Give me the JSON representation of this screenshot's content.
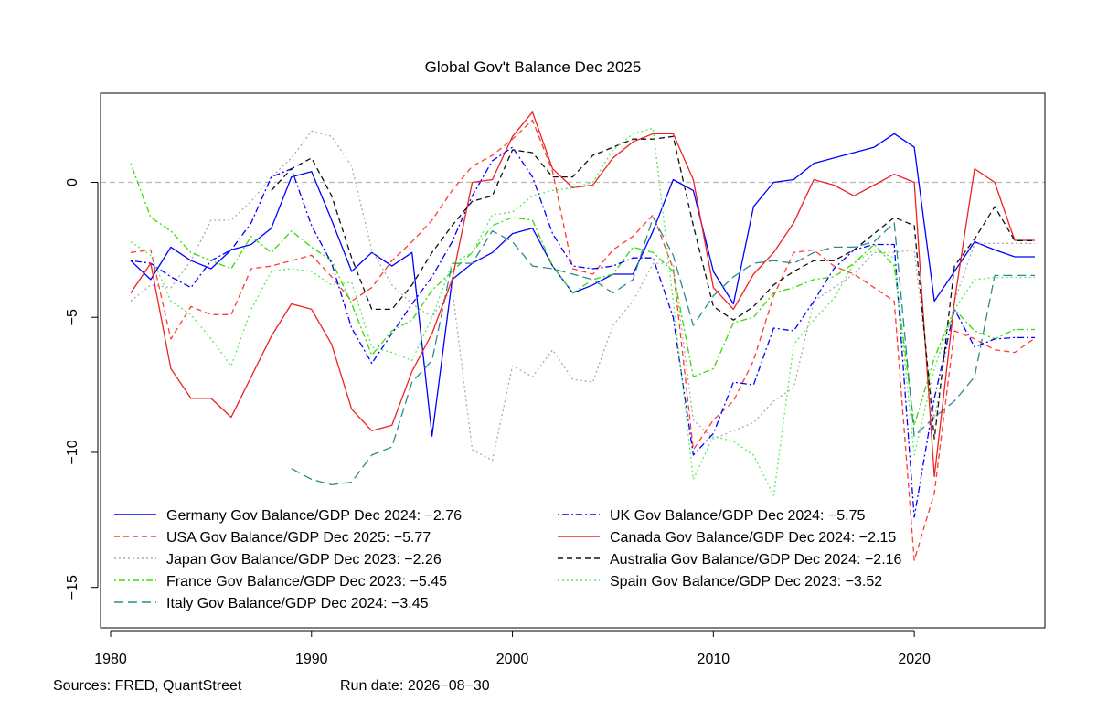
{
  "chart_data": {
    "type": "line",
    "title": "Global Gov't Balance Dec 2025",
    "xlabel": "",
    "ylabel": "",
    "xlim": [
      1979.5,
      2026.5
    ],
    "ylim": [
      -16.5,
      3.3
    ],
    "x_ticks": [
      1980,
      1990,
      2000,
      2010,
      2020
    ],
    "y_ticks": [
      0,
      -5,
      -10,
      -15
    ],
    "reference_line": {
      "y": 0,
      "color": "#bbbbbb",
      "dash": "dashed"
    },
    "grid": false,
    "legend_position": "bottom-left, two columns",
    "series": [
      {
        "name": "Germany Gov Balance/GDP Dec 2024: −2.76",
        "color": "#0000ff",
        "dash": "solid",
        "x": [
          1981,
          1982,
          1983,
          1984,
          1985,
          1986,
          1987,
          1988,
          1989,
          1990,
          1991,
          1992,
          1993,
          1994,
          1995,
          1996,
          1997,
          1998,
          1999,
          2000,
          2001,
          2002,
          2003,
          2004,
          2005,
          2006,
          2007,
          2008,
          2009,
          2010,
          2011,
          2012,
          2013,
          2014,
          2015,
          2016,
          2017,
          2018,
          2019,
          2020,
          2021,
          2022,
          2023,
          2024,
          2025,
          2026
        ],
        "y": [
          -2.9,
          -3.6,
          -2.4,
          -2.9,
          -3.2,
          -2.5,
          -2.3,
          -1.7,
          0.2,
          0.4,
          -1.4,
          -3.3,
          -2.6,
          -3.1,
          -2.6,
          -9.4,
          -3.6,
          -3.0,
          -2.6,
          -1.9,
          -1.7,
          -3.1,
          -4.1,
          -3.8,
          -3.4,
          -3.4,
          -1.8,
          0.1,
          -0.3,
          -3.3,
          -4.5,
          -0.9,
          0.0,
          0.1,
          0.7,
          0.9,
          1.1,
          1.3,
          1.8,
          1.3,
          -4.4,
          -3.3,
          -2.2,
          -2.5,
          -2.76,
          -2.76
        ]
      },
      {
        "name": "USA Gov Balance/GDP Dec 2025: −5.77",
        "color": "#ff3b30",
        "dash": "dashed",
        "x": [
          1981,
          1982,
          1983,
          1984,
          1985,
          1986,
          1987,
          1988,
          1989,
          1990,
          1991,
          1992,
          1993,
          1994,
          1995,
          1996,
          1997,
          1998,
          1999,
          2000,
          2001,
          2002,
          2003,
          2004,
          2005,
          2006,
          2007,
          2008,
          2009,
          2010,
          2011,
          2012,
          2013,
          2014,
          2015,
          2016,
          2017,
          2018,
          2019,
          2020,
          2021,
          2022,
          2023,
          2024,
          2025,
          2026
        ],
        "y": [
          -2.6,
          -2.5,
          -5.8,
          -4.6,
          -4.9,
          -4.9,
          -3.2,
          -3.1,
          -2.9,
          -2.7,
          -3.5,
          -4.4,
          -3.9,
          -2.9,
          -2.2,
          -1.4,
          -0.3,
          0.6,
          1.0,
          1.6,
          2.3,
          0.4,
          -3.2,
          -3.4,
          -2.5,
          -2.0,
          -1.2,
          -3.2,
          -9.9,
          -8.8,
          -8.1,
          -6.6,
          -4.2,
          -2.6,
          -2.5,
          -3.1,
          -3.4,
          -3.9,
          -4.4,
          -14.0,
          -11.5,
          -5.5,
          -5.8,
          -6.2,
          -6.3,
          -5.77
        ]
      },
      {
        "name": "Japan Gov Balance/GDP Dec 2023: −2.26",
        "color": "#aaaaaa",
        "dash": "dotted",
        "x": [
          1981,
          1982,
          1983,
          1984,
          1985,
          1986,
          1987,
          1988,
          1989,
          1990,
          1991,
          1992,
          1993,
          1994,
          1995,
          1996,
          1997,
          1998,
          1999,
          2000,
          2001,
          2002,
          2003,
          2004,
          2005,
          2006,
          2007,
          2008,
          2009,
          2010,
          2011,
          2012,
          2013,
          2014,
          2015,
          2016,
          2017,
          2018,
          2019,
          2020,
          2021,
          2022,
          2023,
          2024,
          2025,
          2026
        ],
        "y": [
          -4.4,
          -3.8,
          -3.9,
          -2.9,
          -1.4,
          -1.4,
          -0.7,
          0.2,
          0.9,
          1.9,
          1.7,
          0.6,
          -2.5,
          -3.8,
          -4.5,
          -5.0,
          -3.9,
          -9.9,
          -10.3,
          -6.8,
          -7.2,
          -6.2,
          -7.3,
          -7.4,
          -5.3,
          -4.4,
          -3.0,
          -3.0,
          -8.8,
          -9.5,
          -9.2,
          -8.9,
          -8.1,
          -7.6,
          -4.4,
          -3.9,
          -3.4,
          -2.6,
          -2.6,
          -2.5,
          -8.8,
          -4.4,
          -2.26,
          -2.26,
          -2.26,
          -2.26
        ]
      },
      {
        "name": "France Gov Balance/GDP Dec 2023: −5.45",
        "color": "#33dd00",
        "dash": "dashdot",
        "x": [
          1981,
          1982,
          1983,
          1984,
          1985,
          1986,
          1987,
          1988,
          1989,
          1990,
          1991,
          1992,
          1993,
          1994,
          1995,
          1996,
          1997,
          1998,
          1999,
          2000,
          2001,
          2002,
          2003,
          2004,
          2005,
          2006,
          2007,
          2008,
          2009,
          2010,
          2011,
          2012,
          2013,
          2014,
          2015,
          2016,
          2017,
          2018,
          2019,
          2020,
          2021,
          2022,
          2023,
          2024,
          2025,
          2026
        ],
        "y": [
          0.7,
          -1.3,
          -1.8,
          -2.6,
          -2.9,
          -3.2,
          -2.0,
          -2.6,
          -1.8,
          -2.4,
          -2.9,
          -4.5,
          -6.4,
          -5.5,
          -5.1,
          -4.0,
          -3.3,
          -2.6,
          -1.6,
          -1.3,
          -1.4,
          -3.1,
          -4.1,
          -3.6,
          -3.4,
          -2.4,
          -2.6,
          -3.3,
          -7.2,
          -6.9,
          -5.2,
          -5.0,
          -4.1,
          -3.9,
          -3.6,
          -3.5,
          -3.0,
          -2.3,
          -3.1,
          -9.0,
          -6.5,
          -4.7,
          -5.5,
          -5.8,
          -5.45,
          -5.45
        ]
      },
      {
        "name": "Italy Gov Balance/GDP Dec 2024: −3.45",
        "color": "#2e8b8b",
        "dash": "longdash",
        "x": [
          1989,
          1990,
          1991,
          1992,
          1993,
          1994,
          1995,
          1996,
          1997,
          1998,
          1999,
          2000,
          2001,
          2002,
          2003,
          2004,
          2005,
          2006,
          2007,
          2008,
          2009,
          2010,
          2011,
          2012,
          2013,
          2014,
          2015,
          2016,
          2017,
          2018,
          2019,
          2020,
          2021,
          2022,
          2023,
          2024,
          2025,
          2026
        ],
        "y": [
          -10.6,
          -11.0,
          -11.2,
          -11.1,
          -10.1,
          -9.8,
          -7.4,
          -6.6,
          -3.0,
          -3.0,
          -1.8,
          -2.2,
          -3.1,
          -3.2,
          -3.4,
          -3.6,
          -4.1,
          -3.6,
          -1.3,
          -2.7,
          -5.3,
          -4.2,
          -3.5,
          -3.0,
          -2.9,
          -3.0,
          -2.6,
          -2.4,
          -2.4,
          -2.2,
          -1.5,
          -9.4,
          -8.7,
          -8.1,
          -7.2,
          -3.45,
          -3.45,
          -3.45
        ]
      },
      {
        "name": "UK Gov Balance/GDP Dec 2024: −5.75",
        "color": "#0000ff",
        "dash": "dashdot",
        "x": [
          1981,
          1982,
          1983,
          1984,
          1985,
          1986,
          1987,
          1988,
          1989,
          1990,
          1991,
          1992,
          1993,
          1994,
          1995,
          1996,
          1997,
          1998,
          1999,
          2000,
          2001,
          2002,
          2003,
          2004,
          2005,
          2006,
          2007,
          2008,
          2009,
          2010,
          2011,
          2012,
          2013,
          2014,
          2015,
          2016,
          2017,
          2018,
          2019,
          2020,
          2021,
          2022,
          2023,
          2024,
          2025,
          2026
        ],
        "y": [
          -2.9,
          -3.0,
          -3.5,
          -3.9,
          -2.9,
          -2.5,
          -1.5,
          0.2,
          0.5,
          -1.6,
          -3.0,
          -5.4,
          -6.7,
          -5.6,
          -4.5,
          -3.5,
          -2.2,
          -0.5,
          0.8,
          1.3,
          0.2,
          -1.9,
          -3.1,
          -3.2,
          -3.1,
          -2.8,
          -2.8,
          -5.0,
          -10.1,
          -9.3,
          -7.4,
          -7.5,
          -5.4,
          -5.5,
          -4.4,
          -3.2,
          -2.5,
          -2.3,
          -2.3,
          -12.4,
          -8.0,
          -4.7,
          -6.1,
          -5.8,
          -5.75,
          -5.75
        ]
      },
      {
        "name": "Canada Gov Balance/GDP Dec 2024: −2.15",
        "color": "#ee2222",
        "dash": "solid",
        "x": [
          1981,
          1982,
          1983,
          1984,
          1985,
          1986,
          1987,
          1988,
          1989,
          1990,
          1991,
          1992,
          1993,
          1994,
          1995,
          1996,
          1997,
          1998,
          1999,
          2000,
          2001,
          2002,
          2003,
          2004,
          2005,
          2006,
          2007,
          2008,
          2009,
          2010,
          2011,
          2012,
          2013,
          2014,
          2015,
          2016,
          2017,
          2018,
          2019,
          2020,
          2021,
          2022,
          2023,
          2024,
          2025,
          2026
        ],
        "y": [
          -4.1,
          -3.0,
          -6.9,
          -8.0,
          -8.0,
          -8.7,
          -7.2,
          -5.7,
          -4.5,
          -4.7,
          -6.0,
          -8.4,
          -9.2,
          -9.0,
          -7.0,
          -5.6,
          -3.6,
          0.0,
          0.1,
          1.7,
          2.6,
          0.5,
          -0.2,
          -0.1,
          0.9,
          1.5,
          1.8,
          1.8,
          0.1,
          -3.9,
          -4.7,
          -3.4,
          -2.6,
          -1.5,
          0.1,
          -0.1,
          -0.5,
          -0.1,
          0.3,
          0.0,
          -10.9,
          -4.4,
          0.5,
          0.0,
          -2.15,
          -2.15
        ]
      },
      {
        "name": "Australia Gov Balance/GDP Dec 2024: −2.16",
        "color": "#111111",
        "dash": "dashed",
        "x": [
          1988,
          1989,
          1990,
          1991,
          1992,
          1993,
          1994,
          1995,
          1996,
          1997,
          1998,
          1999,
          2000,
          2001,
          2002,
          2003,
          2004,
          2005,
          2006,
          2007,
          2008,
          2009,
          2010,
          2011,
          2012,
          2013,
          2014,
          2015,
          2016,
          2017,
          2018,
          2019,
          2020,
          2021,
          2022,
          2023,
          2024,
          2025,
          2026
        ],
        "y": [
          -0.3,
          0.5,
          0.9,
          -0.5,
          -2.8,
          -4.7,
          -4.7,
          -3.8,
          -2.6,
          -1.6,
          -0.7,
          -0.5,
          1.2,
          1.1,
          0.2,
          0.2,
          1.0,
          1.3,
          1.6,
          1.6,
          1.7,
          -1.6,
          -4.6,
          -5.1,
          -4.6,
          -3.8,
          -3.3,
          -2.9,
          -2.9,
          -2.5,
          -1.9,
          -1.3,
          -1.6,
          -9.5,
          -3.1,
          -2.1,
          -0.9,
          -2.16,
          -2.16
        ]
      },
      {
        "name": "Spain Gov Balance/GDP Dec 2023: −3.52",
        "color": "#55ee55",
        "dash": "dotted",
        "x": [
          1981,
          1982,
          1983,
          1984,
          1985,
          1986,
          1987,
          1988,
          1989,
          1990,
          1991,
          1992,
          1993,
          1994,
          1995,
          1996,
          1997,
          1998,
          1999,
          2000,
          2001,
          2002,
          2003,
          2004,
          2005,
          2006,
          2007,
          2008,
          2009,
          2010,
          2011,
          2012,
          2013,
          2014,
          2015,
          2016,
          2017,
          2018,
          2019,
          2020,
          2021,
          2022,
          2023,
          2024,
          2025,
          2026
        ],
        "y": [
          -2.2,
          -2.7,
          -4.4,
          -4.9,
          -5.8,
          -6.8,
          -4.7,
          -3.3,
          -3.2,
          -3.3,
          -3.8,
          -3.7,
          -6.1,
          -6.3,
          -6.6,
          -5.0,
          -3.0,
          -2.6,
          -1.2,
          -1.1,
          -0.5,
          -0.3,
          -0.2,
          0.0,
          1.2,
          1.8,
          2.0,
          -4.4,
          -11.0,
          -9.4,
          -9.6,
          -10.1,
          -11.6,
          -6.0,
          -5.1,
          -4.3,
          -3.0,
          -2.5,
          -2.8,
          -10.1,
          -6.9,
          -4.7,
          -3.6,
          -3.52,
          -3.52,
          -3.52
        ]
      }
    ]
  },
  "footer": {
    "sources": "Sources: FRED, QuantStreet",
    "run_date": "Run date: 2026−08−30"
  }
}
